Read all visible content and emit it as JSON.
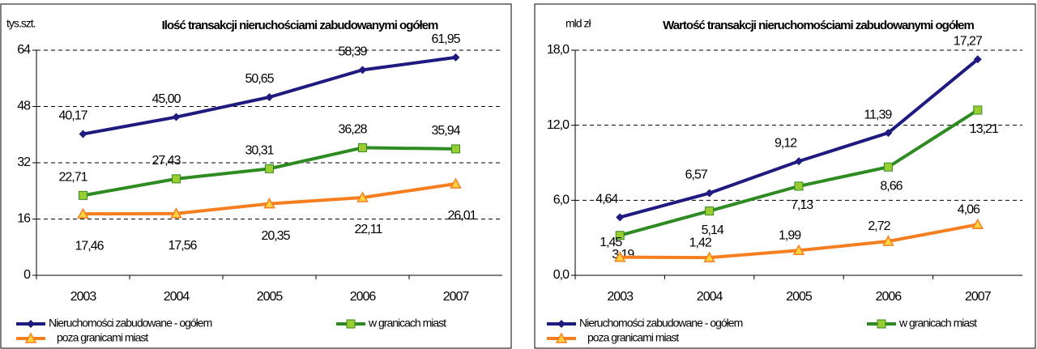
{
  "chart_data": [
    {
      "type": "line",
      "title": "Ilość transakcji nieruchościami zabudowanymi ogółem",
      "y_label": "tys.szt.",
      "categories": [
        "2003",
        "2004",
        "2005",
        "2006",
        "2007"
      ],
      "ylim": [
        0,
        64
      ],
      "yticks": [
        0,
        16,
        32,
        48,
        64
      ],
      "grid": true,
      "series": [
        {
          "name": "Nieruchomości zabudowane - ogółem",
          "color": "#1f1a80",
          "marker": "diamond",
          "values": [
            40.17,
            45.0,
            50.65,
            58.39,
            61.95
          ],
          "value_labels": [
            "40,17",
            "45,00",
            "50,65",
            "58,39",
            "61,95"
          ]
        },
        {
          "name": "w granicach miast",
          "color": "#2e8b22",
          "marker": "square",
          "values": [
            22.71,
            27.43,
            30.31,
            36.28,
            35.94
          ],
          "value_labels": [
            "22,71",
            "27,43",
            "30,31",
            "36,28",
            "35,94"
          ]
        },
        {
          "name": "poza granicami miast",
          "color": "#f57f20",
          "marker": "triangle",
          "values": [
            17.46,
            17.56,
            20.35,
            22.11,
            26.01
          ],
          "value_labels": [
            "17,46",
            "17,56",
            "20,35",
            "22,11",
            "26,01"
          ]
        }
      ]
    },
    {
      "type": "line",
      "title": "Wartość transakcji nieruchomościami zabudowanymi ogółem",
      "y_label": "mld zł",
      "categories": [
        "2003",
        "2004",
        "2005",
        "2006",
        "2007"
      ],
      "ylim": [
        0,
        18
      ],
      "yticks": [
        {
          "value": 0,
          "label": "0,0"
        },
        {
          "value": 6,
          "label": "6,0"
        },
        {
          "value": 12,
          "label": "12,0"
        },
        {
          "value": 18,
          "label": "18,0"
        }
      ],
      "grid": true,
      "series": [
        {
          "name": "Nieruchomości zabudowane - ogółem",
          "color": "#1f1a80",
          "marker": "diamond",
          "values": [
            4.64,
            6.57,
            9.12,
            11.39,
            17.27
          ],
          "value_labels": [
            "4,64",
            "6,57",
            "9,12",
            "11,39",
            "17,27"
          ]
        },
        {
          "name": "w granicach miast",
          "color": "#2e8b22",
          "marker": "square",
          "values": [
            3.19,
            5.14,
            7.13,
            8.66,
            13.21
          ],
          "value_labels": [
            "3,19",
            "5,14",
            "7,13",
            "8,66",
            "13,21"
          ]
        },
        {
          "name": "poza granicami miast",
          "color": "#f57f20",
          "marker": "triangle",
          "values": [
            1.45,
            1.42,
            1.99,
            2.72,
            4.06
          ],
          "value_labels": [
            "1,45",
            "1,42",
            "1,99",
            "2,72",
            "4,06"
          ]
        }
      ]
    }
  ]
}
